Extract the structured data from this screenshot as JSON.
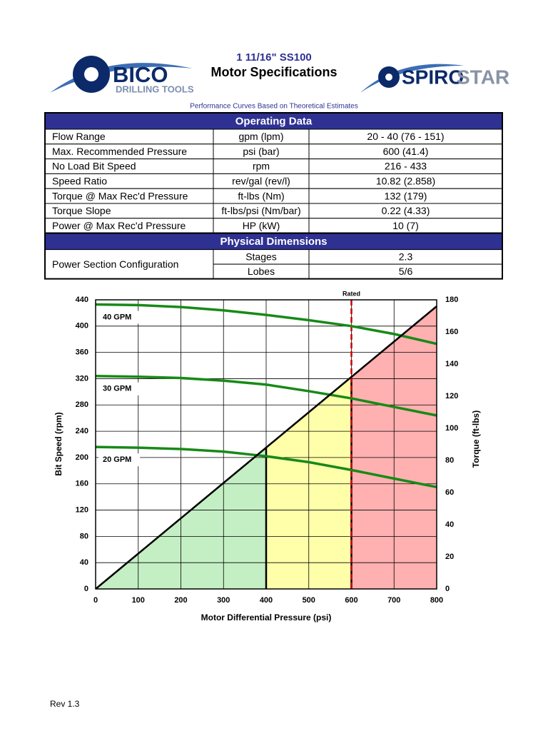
{
  "header": {
    "logo_left": [
      "BICO",
      "DRILLING TOOLS"
    ],
    "logo_right": [
      "SPIRO",
      "STAR"
    ],
    "title": "1 11/16\" SS100",
    "subtitle": "Motor Specifications",
    "note": "Performance Curves Based on Theoretical Estimates"
  },
  "table": {
    "sections": [
      {
        "title": "Operating Data",
        "rows": [
          [
            "Flow Range",
            "gpm (lpm)",
            "20 - 40 (76 - 151)"
          ],
          [
            "Max. Recommended Pressure",
            "psi (bar)",
            "600 (41.4)"
          ],
          [
            "No Load Bit Speed",
            "rpm",
            "216 - 433"
          ],
          [
            "Speed Ratio",
            "rev/gal (rev/l)",
            "10.82 (2.858)"
          ],
          [
            "Torque @ Max Rec'd Pressure",
            "ft-lbs (Nm)",
            "132 (179)"
          ],
          [
            "Torque Slope",
            "ft-lbs/psi (Nm/bar)",
            "0.22 (4.33)"
          ],
          [
            "Power @ Max Rec'd Pressure",
            "HP (kW)",
            "10 (7)"
          ]
        ]
      },
      {
        "title": "Physical Dimensions",
        "group": "Power Section Configuration",
        "rows": [
          [
            "Stages",
            "2.3"
          ],
          [
            "Lobes",
            "5/6"
          ]
        ]
      }
    ]
  },
  "chart_data": {
    "type": "line",
    "xlabel": "Motor Differential Pressure (psi)",
    "ylabel": "Bit Speed (rpm)",
    "y2label": "Torque (ft-lbs)",
    "x": [
      0,
      100,
      200,
      300,
      400,
      500,
      600,
      700,
      800
    ],
    "series": [
      {
        "name": "40 GPM",
        "color": "#178a17",
        "values": [
          433,
          432,
          429,
          424,
          417,
          409,
          400,
          388,
          373
        ]
      },
      {
        "name": "30 GPM",
        "color": "#178a17",
        "values": [
          324,
          323,
          321,
          317,
          311,
          301,
          290,
          277,
          264
        ]
      },
      {
        "name": "20 GPM",
        "color": "#178a17",
        "values": [
          216,
          215,
          213,
          209,
          202,
          193,
          181,
          168,
          155
        ]
      },
      {
        "name": "Torque",
        "axis": "y2",
        "color": "#000000",
        "values": [
          0,
          22,
          44,
          66,
          88,
          110,
          132,
          154,
          176
        ]
      }
    ],
    "zones": [
      {
        "from": 0,
        "to": 400,
        "color": "#c4efc4"
      },
      {
        "from": 400,
        "to": 600,
        "color": "#ffffaa"
      },
      {
        "from": 600,
        "to": 800,
        "color": "#ffb0b0"
      }
    ],
    "rated": {
      "value": 600,
      "label": "Rated",
      "color": "#cc0000"
    },
    "xlim": [
      0,
      800
    ],
    "xticks": [
      0,
      100,
      200,
      300,
      400,
      500,
      600,
      700,
      800
    ],
    "ylim": [
      0,
      440
    ],
    "yticks": [
      0,
      40,
      80,
      120,
      160,
      200,
      240,
      280,
      320,
      360,
      400,
      440
    ],
    "y2lim": [
      0,
      180
    ],
    "y2ticks": [
      0,
      20,
      40,
      60,
      80,
      100,
      120,
      140,
      160,
      180
    ],
    "grid": true
  },
  "footer": "Rev 1.3"
}
